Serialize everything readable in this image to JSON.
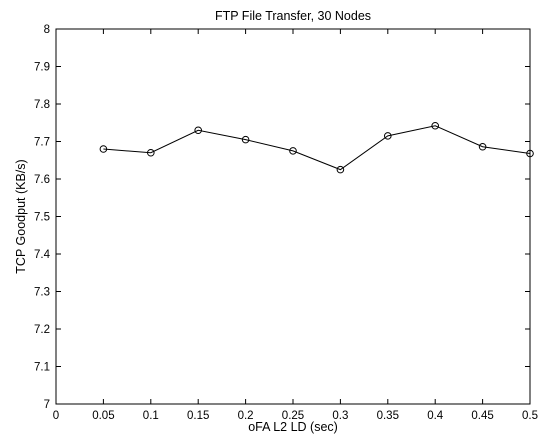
{
  "chart_data": {
    "type": "line",
    "title": "FTP File Transfer, 30 Nodes",
    "xlabel": "oFA L2 LD (sec)",
    "ylabel": "TCP Goodput (KB/s)",
    "xlim": [
      0,
      0.5
    ],
    "ylim": [
      7,
      8
    ],
    "x_ticks": [
      "0",
      "0.05",
      "0.1",
      "0.15",
      "0.2",
      "0.25",
      "0.3",
      "0.35",
      "0.4",
      "0.45",
      "0.5"
    ],
    "y_ticks": [
      "7",
      "7.1",
      "7.2",
      "7.3",
      "7.4",
      "7.5",
      "7.6",
      "7.7",
      "7.8",
      "7.9",
      "8"
    ],
    "grid": false,
    "legend": "none",
    "series": [
      {
        "marker": "circle-open",
        "color": "#000000",
        "x": [
          0.05,
          0.1,
          0.15,
          0.2,
          0.25,
          0.3,
          0.35,
          0.4,
          0.45,
          0.5
        ],
        "y": [
          7.68,
          7.67,
          7.73,
          7.705,
          7.675,
          7.625,
          7.715,
          7.742,
          7.686,
          7.668
        ]
      }
    ]
  }
}
